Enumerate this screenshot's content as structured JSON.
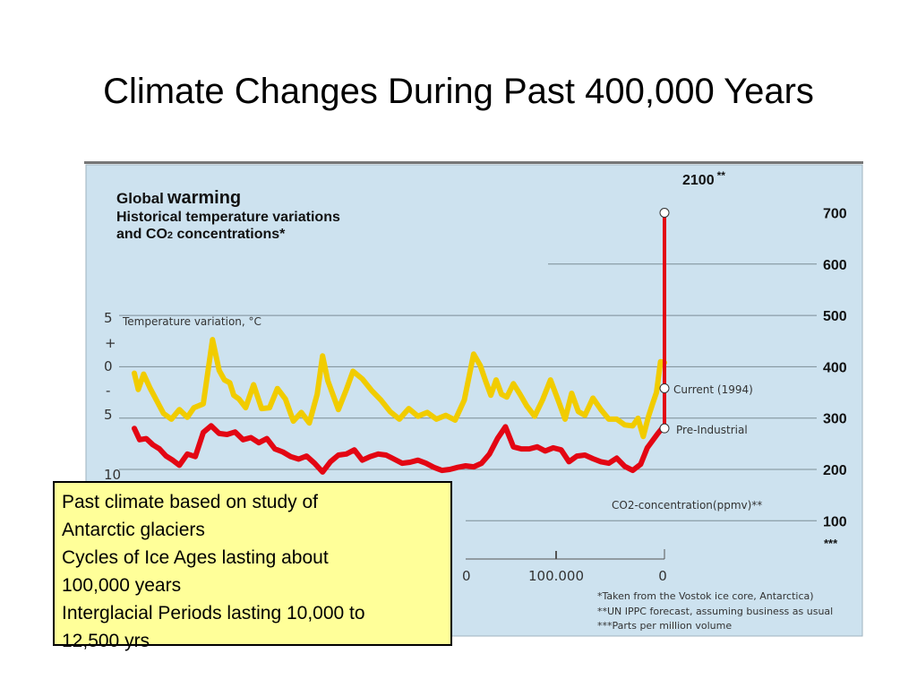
{
  "slide": {
    "title": "Climate Changes During Past 400,000 Years"
  },
  "note_box": {
    "lines": [
      "Past climate based on study of",
      "Antarctic glaciers",
      "Cycles of Ice Ages lasting about",
      "100,000 years",
      "Interglacial Periods lasting 10,000 to",
      "12,500 yrs"
    ]
  },
  "chart_data": {
    "type": "line",
    "title_part1": "Global",
    "title_part2": "warming",
    "subtitle_line1": "Historical temperature variations",
    "subtitle_line2_a": "and CO",
    "subtitle_line2_sub": "2",
    "subtitle_line2_b": " concentrations*",
    "left_axis_label": "Temperature variation, °C",
    "left_axis_ticks": [
      "5",
      "+",
      "0",
      "-",
      "5",
      "10"
    ],
    "right_axis_label": "CO2-concentration(ppmv)**",
    "right_axis_ticks": [
      {
        "value": 700,
        "label": "700"
      },
      {
        "value": 600,
        "label": "600"
      },
      {
        "value": 500,
        "label": "500"
      },
      {
        "value": 400,
        "label": "400"
      },
      {
        "value": 300,
        "label": "300"
      },
      {
        "value": 200,
        "label": "200"
      },
      {
        "value": 100,
        "label": "100"
      }
    ],
    "right_axis_extra": "***",
    "y_right_range": [
      100,
      700
    ],
    "x_ticks": [
      "0",
      "100.000",
      "0"
    ],
    "x_range_years_before_present": [
      400000,
      0
    ],
    "markers": [
      {
        "label": "2100",
        "suffix": "**",
        "co2": 700
      },
      {
        "label": "Current (1994)",
        "co2": 358
      },
      {
        "label": "Pre-Industrial",
        "co2": 280
      }
    ],
    "footnotes": [
      "*Taken from the Vostok ice core, Antarctica)",
      "**UN IPPC forecast, assuming business as usual",
      "***Parts per million volume"
    ],
    "colors": {
      "background": "#cde2ef",
      "temperature": "#f1cc00",
      "co2": "#e30613",
      "note_box": "#ffff99"
    },
    "series": [
      {
        "name": "Temperature variation, °C",
        "color": "#f1cc00",
        "x": [
          400000,
          397000,
          393000,
          388000,
          383000,
          378000,
          372000,
          366000,
          360000,
          355000,
          348000,
          341000,
          336000,
          332000,
          328000,
          325000,
          321000,
          316000,
          310000,
          304000,
          298000,
          292000,
          286000,
          280000,
          274000,
          268000,
          262000,
          258000,
          254000,
          250000,
          246000,
          240000,
          235000,
          228000,
          221000,
          214000,
          207000,
          200000,
          193000,
          186000,
          179000,
          172000,
          165000,
          158000,
          151000,
          144000,
          139000,
          135000,
          131000,
          127000,
          123000,
          119000,
          114000,
          109000,
          104000,
          98000,
          92000,
          86000,
          80000,
          75000,
          70000,
          65000,
          60000,
          54000,
          48000,
          42000,
          36000,
          30000,
          24000,
          20000,
          16000,
          12000,
          9000,
          6000,
          3000,
          0
        ],
        "values": [
          -0.8,
          -2.5,
          -0.9,
          -2.4,
          -3.7,
          -5.0,
          -5.6,
          -4.6,
          -5.4,
          -4.4,
          -4.0,
          2.7,
          -0.5,
          -1.5,
          -1.8,
          -3.1,
          -3.5,
          -4.4,
          -2.0,
          -4.5,
          -4.4,
          -2.4,
          -3.5,
          -5.8,
          -4.9,
          -6.0,
          -3.0,
          1.0,
          -1.6,
          -3.1,
          -4.6,
          -2.5,
          -0.6,
          -1.4,
          -2.6,
          -3.6,
          -4.8,
          -5.6,
          -4.5,
          -5.3,
          -4.9,
          -5.6,
          -5.2,
          -5.7,
          -3.6,
          1.2,
          0.0,
          -1.6,
          -3.1,
          -1.5,
          -3.0,
          -3.3,
          -1.9,
          -3.0,
          -4.2,
          -5.3,
          -3.6,
          -1.5,
          -3.7,
          -5.6,
          -2.9,
          -4.8,
          -5.2,
          -3.4,
          -4.6,
          -5.6,
          -5.6,
          -6.2,
          -6.3,
          -5.5,
          -7.4,
          -5.3,
          -4.0,
          -2.8,
          0.4,
          0.3
        ]
      },
      {
        "name": "CO2-concentration(ppmv)",
        "color": "#e30613",
        "x": [
          400000,
          396000,
          391000,
          386000,
          381000,
          376000,
          371000,
          366000,
          360000,
          354000,
          348000,
          342000,
          336000,
          330000,
          324000,
          318000,
          312000,
          306000,
          300000,
          294000,
          288000,
          282000,
          276000,
          270000,
          264000,
          258000,
          252000,
          246000,
          240000,
          234000,
          228000,
          222000,
          216000,
          210000,
          204000,
          198000,
          192000,
          186000,
          180000,
          174000,
          168000,
          162000,
          156000,
          150000,
          144000,
          138000,
          132000,
          126000,
          120000,
          114000,
          108000,
          102000,
          96000,
          90000,
          84000,
          78000,
          72000,
          66000,
          60000,
          54000,
          48000,
          42000,
          36000,
          30000,
          24000,
          18000,
          13000,
          9000,
          5000,
          1800
        ],
        "values": [
          280,
          258,
          260,
          248,
          240,
          226,
          218,
          208,
          230,
          225,
          272,
          285,
          270,
          268,
          273,
          258,
          262,
          252,
          260,
          240,
          234,
          225,
          220,
          226,
          212,
          195,
          215,
          228,
          230,
          238,
          218,
          225,
          230,
          228,
          220,
          212,
          214,
          218,
          212,
          204,
          198,
          200,
          204,
          207,
          205,
          212,
          230,
          260,
          283,
          244,
          240,
          240,
          244,
          236,
          242,
          238,
          215,
          226,
          228,
          221,
          215,
          212,
          222,
          206,
          198,
          210,
          242,
          256,
          270,
          280
        ]
      }
    ]
  }
}
